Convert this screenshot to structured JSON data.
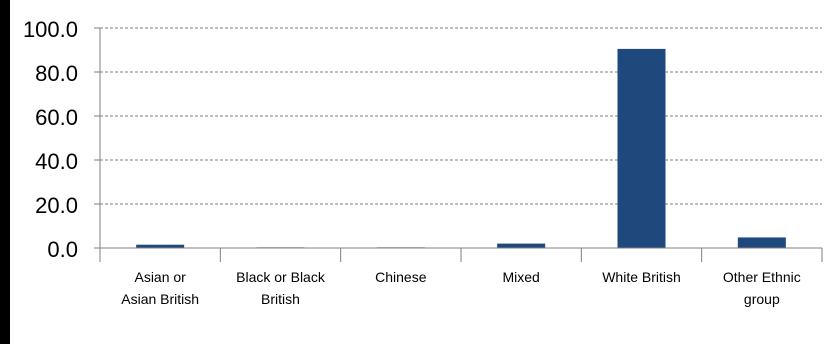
{
  "colors": {
    "bar": "#1f497d",
    "grid": "#7f7f7f",
    "axis": "#7f7f7f",
    "text": "#000000"
  },
  "chart_data": {
    "type": "bar",
    "categories": [
      [
        "Asian or",
        "Asian British"
      ],
      [
        "Black or Black",
        "British"
      ],
      [
        "Chinese"
      ],
      [
        "Mixed"
      ],
      [
        "White British"
      ],
      [
        "Other Ethnic",
        "group"
      ]
    ],
    "values": [
      1.5,
      0.3,
      0.3,
      2.0,
      90.5,
      4.8
    ],
    "ylim": [
      0,
      100
    ],
    "yticks": [
      "0.0",
      "20.0",
      "40.0",
      "60.0",
      "80.0",
      "100.0"
    ],
    "grid": true,
    "legend": "none"
  }
}
